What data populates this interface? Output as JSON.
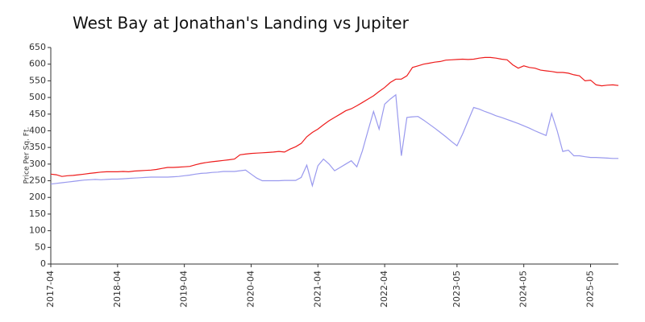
{
  "chart_data": {
    "type": "line",
    "title": "West Bay at Jonathan's Landing vs Jupiter",
    "y_label": "Price Per Sq. Ft.",
    "categories": [
      "2017-04",
      null,
      null,
      null,
      null,
      null,
      null,
      null,
      null,
      null,
      null,
      null,
      "2018-04",
      null,
      null,
      null,
      null,
      null,
      null,
      null,
      null,
      null,
      null,
      null,
      "2019-04",
      null,
      null,
      null,
      null,
      null,
      null,
      null,
      null,
      null,
      null,
      null,
      "2020-04",
      null,
      null,
      null,
      null,
      null,
      null,
      null,
      null,
      null,
      null,
      null,
      "2021-04",
      null,
      null,
      null,
      null,
      null,
      null,
      null,
      null,
      null,
      null,
      null,
      "2022-04",
      null,
      null,
      null,
      null,
      null,
      null,
      null,
      null,
      null,
      null,
      null,
      null,
      "2023-05",
      null,
      null,
      null,
      null,
      null,
      null,
      null,
      null,
      null,
      null,
      null,
      "2024-05",
      null,
      null,
      null,
      null,
      null,
      null,
      null,
      null,
      null,
      null,
      null,
      "2025-05",
      null,
      null,
      null,
      null,
      null
    ],
    "series": [
      {
        "color": "#ee1c1c",
        "values": [
          270,
          268,
          263,
          265,
          266,
          268,
          270,
          272,
          274,
          276,
          277,
          277,
          277,
          278,
          277,
          279,
          280,
          281,
          282,
          284,
          287,
          290,
          290,
          291,
          292,
          293,
          298,
          302,
          305,
          307,
          309,
          311,
          313,
          315,
          328,
          330,
          332,
          333,
          334,
          335,
          336,
          338,
          336,
          345,
          352,
          362,
          382,
          395,
          405,
          418,
          430,
          440,
          450,
          460,
          466,
          475,
          485,
          495,
          505,
          518,
          530,
          545,
          555,
          555,
          565,
          590,
          595,
          600,
          603,
          606,
          608,
          612,
          613,
          614,
          615,
          614,
          615,
          618,
          620,
          620,
          618,
          615,
          613,
          598,
          588,
          595,
          590,
          588,
          582,
          580,
          578,
          575,
          575,
          573,
          568,
          565,
          550,
          552,
          538,
          535,
          537,
          538,
          536
        ]
      },
      {
        "color": "#9999ee",
        "values": [
          240,
          242,
          244,
          246,
          248,
          250,
          252,
          253,
          254,
          253,
          254,
          255,
          255,
          256,
          257,
          258,
          259,
          260,
          261,
          261,
          261,
          261,
          262,
          263,
          265,
          267,
          270,
          272,
          273,
          275,
          276,
          278,
          278,
          278,
          280,
          282,
          270,
          258,
          250,
          250,
          250,
          250,
          251,
          251,
          251,
          260,
          297,
          235,
          295,
          315,
          300,
          280,
          290,
          300,
          310,
          292,
          340,
          400,
          458,
          405,
          480,
          495,
          508,
          325,
          440,
          442,
          443,
          432,
          420,
          408,
          395,
          382,
          368,
          355,
          390,
          430,
          470,
          465,
          458,
          452,
          445,
          440,
          434,
          428,
          422,
          415,
          408,
          400,
          393,
          386,
          452,
          400,
          338,
          342,
          325,
          325,
          322,
          320,
          320,
          319,
          318,
          317,
          317
        ]
      }
    ],
    "ylim": [
      0,
      650
    ],
    "yticks": [
      0,
      50,
      100,
      150,
      200,
      250,
      300,
      350,
      400,
      450,
      500,
      550,
      600,
      650
    ]
  }
}
